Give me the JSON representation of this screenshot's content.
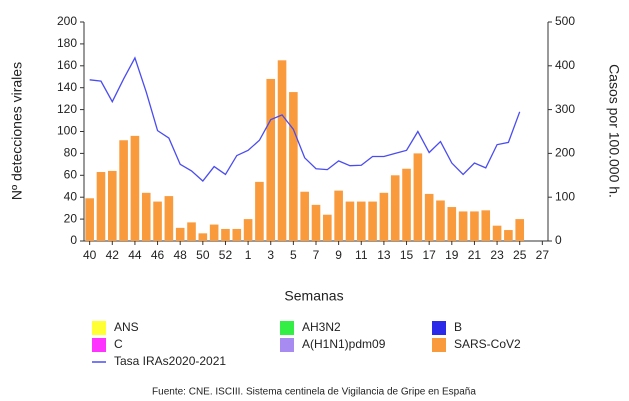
{
  "chart_data": {
    "type": "bar",
    "ylabel": "Nº detecciones virales",
    "y2label": "Casos por 100.000 h.",
    "xlabel": "Semanas",
    "source": "Fuente: CNE. ISCIII. Sistema centinela de Vigilancia de Gripe en España",
    "categories": [
      "40",
      null,
      "42",
      null,
      "44",
      null,
      "46",
      null,
      "48",
      null,
      "50",
      null,
      "52",
      null,
      "1",
      null,
      "3",
      null,
      "5",
      null,
      "7",
      null,
      "9",
      null,
      "11",
      null,
      "13",
      null,
      "15",
      null,
      "17",
      null,
      "19",
      null,
      "21",
      null,
      "23",
      null,
      "25",
      null,
      "27"
    ],
    "ylim": [
      0,
      200
    ],
    "yticks": [
      0,
      20,
      40,
      60,
      80,
      100,
      120,
      140,
      160,
      180,
      200
    ],
    "y2lim": [
      0,
      500
    ],
    "y2ticks": [
      0,
      100,
      200,
      300,
      400,
      500
    ],
    "series": [
      {
        "name": "ANS",
        "color": "#ffff33",
        "type": "bar",
        "values": [
          0,
          0,
          0,
          0,
          0,
          0,
          0,
          0,
          0,
          0,
          0,
          0,
          0,
          0,
          0,
          0,
          0,
          0,
          0,
          0,
          0,
          0,
          0,
          0,
          0,
          0,
          0,
          0,
          0,
          0,
          0,
          0,
          0,
          0,
          0,
          0,
          0,
          0,
          0,
          null,
          null
        ]
      },
      {
        "name": "C",
        "color": "#ff33ff",
        "type": "bar",
        "values": [
          0,
          0,
          0,
          0,
          0,
          0,
          0,
          0,
          0,
          0,
          0,
          0,
          0,
          0,
          0,
          0,
          0,
          0,
          0,
          0,
          0,
          0,
          0,
          0,
          0,
          0,
          0,
          0,
          0,
          0,
          0,
          0,
          0,
          0,
          0,
          0,
          0,
          0,
          0,
          null,
          null
        ]
      },
      {
        "name": "Tasa IRAs2020-2021",
        "color": "#4a4cf0",
        "type": "line",
        "axis": "y2",
        "values": [
          368,
          365,
          318,
          370,
          418,
          340,
          252,
          235,
          175,
          160,
          137,
          170,
          152,
          195,
          207,
          230,
          277,
          288,
          255,
          190,
          165,
          163,
          183,
          172,
          173,
          193,
          193,
          200,
          207,
          250,
          202,
          227,
          178,
          152,
          178,
          167,
          220,
          225,
          295,
          null,
          null
        ]
      },
      {
        "name": "AH3N2",
        "color": "#33ee44",
        "type": "bar",
        "values": [
          0,
          0,
          0,
          0,
          0,
          0,
          0,
          0,
          0,
          0,
          0,
          0,
          0,
          0,
          0,
          0,
          0,
          0,
          0,
          0,
          0,
          0,
          0,
          0,
          0,
          0,
          0,
          0,
          0,
          0,
          0,
          0,
          0,
          0,
          0,
          0,
          0,
          0,
          0,
          null,
          null
        ]
      },
      {
        "name": "A(H1N1)pdm09",
        "color": "#a78bf0",
        "type": "bar",
        "values": [
          0,
          0,
          0,
          0,
          0,
          0,
          0,
          0,
          0,
          0,
          0,
          0,
          0,
          0,
          0,
          0,
          0,
          0,
          0,
          0,
          0,
          0,
          0,
          0,
          0,
          0,
          0,
          0,
          0,
          0,
          0,
          0,
          0,
          0,
          0,
          0,
          0,
          0,
          0,
          null,
          null
        ]
      },
      {
        "name": "B",
        "color": "#2a2ae8",
        "type": "bar",
        "values": [
          0,
          0,
          0,
          0,
          0,
          0,
          0,
          0,
          0,
          0,
          0,
          0,
          0,
          0,
          0,
          0,
          0,
          0,
          0,
          0,
          0,
          0,
          0,
          0,
          0,
          0,
          0,
          0,
          0,
          0,
          0,
          0,
          0,
          0,
          0,
          0,
          0,
          0,
          0,
          null,
          null
        ]
      },
      {
        "name": "SARS-CoV2",
        "color": "#f99a3c",
        "type": "bar",
        "values": [
          39,
          63,
          64,
          92,
          96,
          44,
          36,
          41,
          12,
          17,
          7,
          15,
          11,
          11,
          20,
          54,
          148,
          165,
          136,
          45,
          33,
          24,
          46,
          36,
          36,
          36,
          44,
          60,
          66,
          80,
          43,
          37,
          31,
          27,
          27,
          28,
          14,
          10,
          20,
          null,
          null
        ]
      }
    ]
  }
}
